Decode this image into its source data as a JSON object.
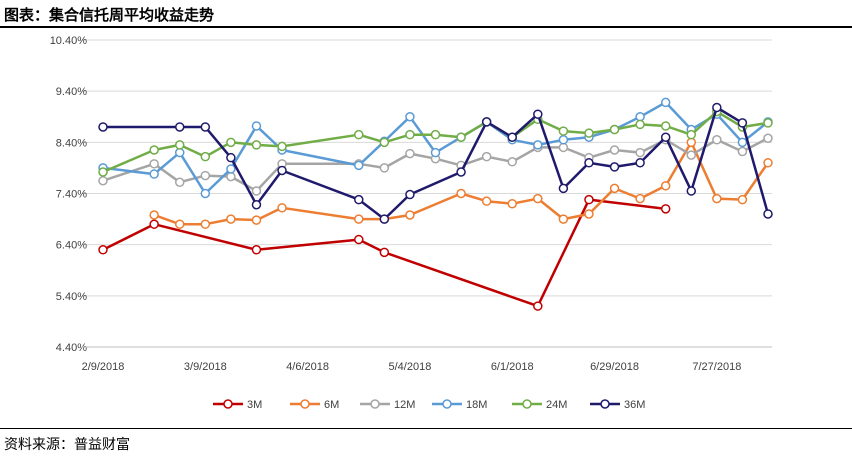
{
  "header": {
    "title": "图表：集合信托周平均收益走势"
  },
  "footer": {
    "source": "资料来源：普益财富"
  },
  "chart_data": {
    "type": "line",
    "title": "",
    "xlabel": "",
    "ylabel": "",
    "ylim": [
      4.4,
      10.4
    ],
    "y_ticks": [
      "4.40%",
      "5.40%",
      "6.40%",
      "7.40%",
      "8.40%",
      "9.40%",
      "10.40%"
    ],
    "x_ticks": [
      "2/9/2018",
      "3/9/2018",
      "4/6/2018",
      "5/4/2018",
      "6/1/2018",
      "6/29/2018",
      "7/27/2018"
    ],
    "x_tick_dates": [
      "2018-02-09",
      "2018-03-09",
      "2018-04-06",
      "2018-05-04",
      "2018-06-01",
      "2018-06-29",
      "2018-07-27"
    ],
    "grid": true,
    "legend": "bottom",
    "series": [
      {
        "name": "3M",
        "color": "#C00000",
        "points": [
          [
            "2018-02-09",
            6.3
          ],
          [
            "2018-02-23",
            6.8
          ],
          [
            "2018-03-23",
            6.3
          ],
          [
            "2018-04-20",
            6.5
          ],
          [
            "2018-04-27",
            6.25
          ],
          [
            "2018-06-08",
            5.2
          ],
          [
            "2018-06-22",
            7.28
          ],
          [
            "2018-07-13",
            7.1
          ]
        ]
      },
      {
        "name": "6M",
        "color": "#ED7D31",
        "points": [
          [
            "2018-02-23",
            6.98
          ],
          [
            "2018-03-02",
            6.8
          ],
          [
            "2018-03-09",
            6.8
          ],
          [
            "2018-03-16",
            6.9
          ],
          [
            "2018-03-23",
            6.88
          ],
          [
            "2018-03-30",
            7.12
          ],
          [
            "2018-04-20",
            6.9
          ],
          [
            "2018-04-27",
            6.9
          ],
          [
            "2018-05-04",
            6.98
          ],
          [
            "2018-05-18",
            7.4
          ],
          [
            "2018-05-25",
            7.25
          ],
          [
            "2018-06-01",
            7.2
          ],
          [
            "2018-06-08",
            7.3
          ],
          [
            "2018-06-15",
            6.9
          ],
          [
            "2018-06-22",
            7.0
          ],
          [
            "2018-06-29",
            7.5
          ],
          [
            "2018-07-06",
            7.3
          ],
          [
            "2018-07-13",
            7.55
          ],
          [
            "2018-07-20",
            8.4
          ],
          [
            "2018-07-27",
            7.3
          ],
          [
            "2018-08-03",
            7.28
          ],
          [
            "2018-08-10",
            8.0
          ]
        ]
      },
      {
        "name": "12M",
        "color": "#A5A5A5",
        "points": [
          [
            "2018-02-09",
            7.65
          ],
          [
            "2018-02-23",
            7.98
          ],
          [
            "2018-03-02",
            7.62
          ],
          [
            "2018-03-09",
            7.75
          ],
          [
            "2018-03-16",
            7.73
          ],
          [
            "2018-03-23",
            7.45
          ],
          [
            "2018-03-30",
            7.98
          ],
          [
            "2018-04-20",
            7.98
          ],
          [
            "2018-04-27",
            7.9
          ],
          [
            "2018-05-04",
            8.18
          ],
          [
            "2018-05-11",
            8.08
          ],
          [
            "2018-05-18",
            7.95
          ],
          [
            "2018-05-25",
            8.12
          ],
          [
            "2018-06-01",
            8.02
          ],
          [
            "2018-06-08",
            8.3
          ],
          [
            "2018-06-15",
            8.3
          ],
          [
            "2018-06-22",
            8.1
          ],
          [
            "2018-06-29",
            8.25
          ],
          [
            "2018-07-06",
            8.2
          ],
          [
            "2018-07-13",
            8.45
          ],
          [
            "2018-07-20",
            8.15
          ],
          [
            "2018-07-27",
            8.45
          ],
          [
            "2018-08-03",
            8.22
          ],
          [
            "2018-08-10",
            8.48
          ]
        ]
      },
      {
        "name": "18M",
        "color": "#5B9BD5",
        "points": [
          [
            "2018-02-09",
            7.9
          ],
          [
            "2018-02-23",
            7.78
          ],
          [
            "2018-03-02",
            8.2
          ],
          [
            "2018-03-09",
            7.4
          ],
          [
            "2018-03-16",
            7.88
          ],
          [
            "2018-03-23",
            8.72
          ],
          [
            "2018-03-30",
            8.25
          ],
          [
            "2018-04-20",
            7.95
          ],
          [
            "2018-04-27",
            8.42
          ],
          [
            "2018-05-04",
            8.9
          ],
          [
            "2018-05-11",
            8.2
          ],
          [
            "2018-05-18",
            8.5
          ],
          [
            "2018-05-25",
            8.8
          ],
          [
            "2018-06-01",
            8.45
          ],
          [
            "2018-06-08",
            8.35
          ],
          [
            "2018-06-15",
            8.45
          ],
          [
            "2018-06-22",
            8.5
          ],
          [
            "2018-06-29",
            8.65
          ],
          [
            "2018-07-06",
            8.9
          ],
          [
            "2018-07-13",
            9.18
          ],
          [
            "2018-07-20",
            8.65
          ],
          [
            "2018-07-27",
            8.95
          ],
          [
            "2018-08-03",
            8.4
          ],
          [
            "2018-08-10",
            8.8
          ]
        ]
      },
      {
        "name": "24M",
        "color": "#70AD47",
        "points": [
          [
            "2018-02-09",
            7.82
          ],
          [
            "2018-02-23",
            8.25
          ],
          [
            "2018-03-02",
            8.35
          ],
          [
            "2018-03-09",
            8.12
          ],
          [
            "2018-03-16",
            8.4
          ],
          [
            "2018-03-23",
            8.35
          ],
          [
            "2018-03-30",
            8.32
          ],
          [
            "2018-04-20",
            8.55
          ],
          [
            "2018-04-27",
            8.4
          ],
          [
            "2018-05-04",
            8.55
          ],
          [
            "2018-05-11",
            8.55
          ],
          [
            "2018-05-18",
            8.5
          ],
          [
            "2018-05-25",
            8.8
          ],
          [
            "2018-06-01",
            8.5
          ],
          [
            "2018-06-08",
            8.85
          ],
          [
            "2018-06-15",
            8.62
          ],
          [
            "2018-06-22",
            8.58
          ],
          [
            "2018-06-29",
            8.65
          ],
          [
            "2018-07-06",
            8.75
          ],
          [
            "2018-07-13",
            8.72
          ],
          [
            "2018-07-20",
            8.55
          ],
          [
            "2018-07-27",
            9.0
          ],
          [
            "2018-08-03",
            8.7
          ],
          [
            "2018-08-10",
            8.78
          ]
        ]
      },
      {
        "name": "36M",
        "color": "#1F1A6B",
        "points": [
          [
            "2018-02-09",
            8.7
          ],
          [
            "2018-03-02",
            8.7
          ],
          [
            "2018-03-09",
            8.7
          ],
          [
            "2018-03-16",
            8.1
          ],
          [
            "2018-03-23",
            7.18
          ],
          [
            "2018-03-30",
            7.85
          ],
          [
            "2018-04-20",
            7.28
          ],
          [
            "2018-04-27",
            6.9
          ],
          [
            "2018-05-04",
            7.38
          ],
          [
            "2018-05-18",
            7.82
          ],
          [
            "2018-05-25",
            8.8
          ],
          [
            "2018-06-01",
            8.5
          ],
          [
            "2018-06-08",
            8.95
          ],
          [
            "2018-06-15",
            7.5
          ],
          [
            "2018-06-22",
            8.0
          ],
          [
            "2018-06-29",
            7.92
          ],
          [
            "2018-07-06",
            8.0
          ],
          [
            "2018-07-13",
            8.5
          ],
          [
            "2018-07-20",
            7.45
          ],
          [
            "2018-07-27",
            9.08
          ],
          [
            "2018-08-03",
            8.78
          ],
          [
            "2018-08-10",
            7.0
          ]
        ]
      }
    ]
  }
}
